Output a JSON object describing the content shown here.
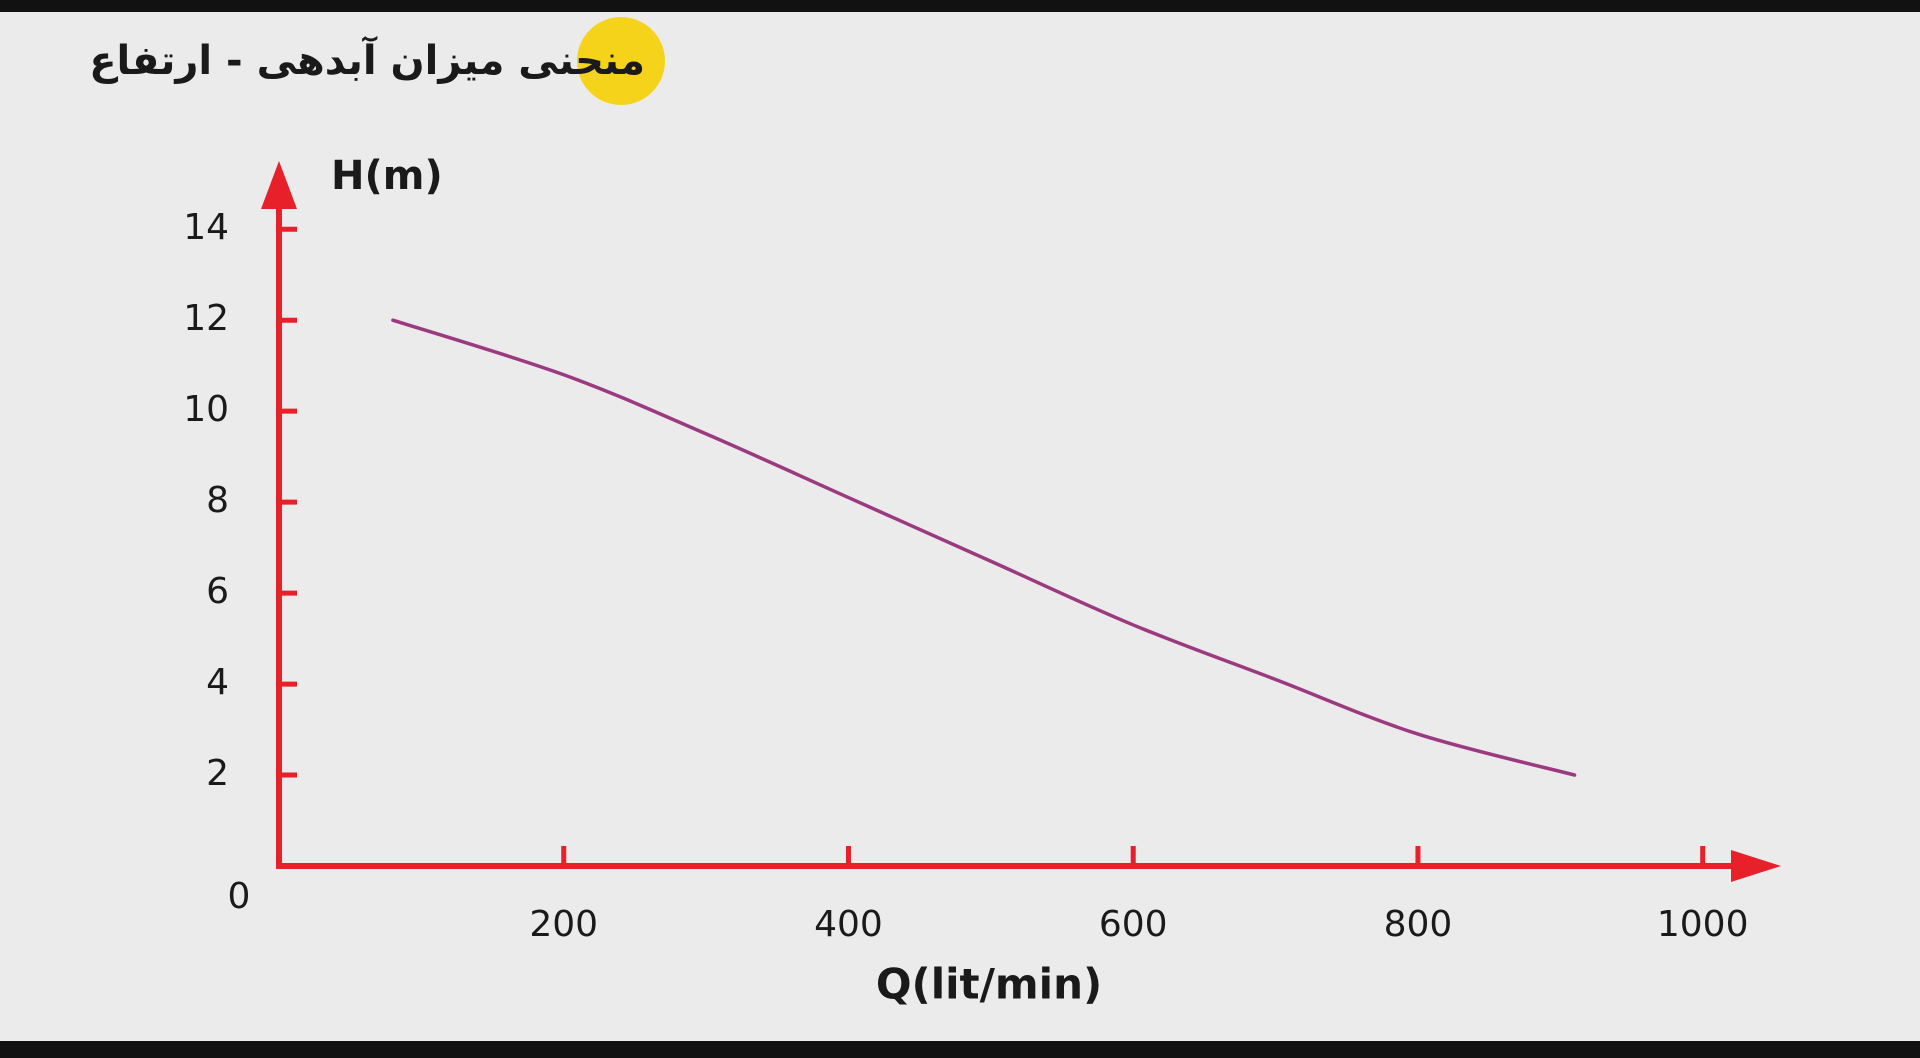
{
  "chart_data": {
    "type": "line",
    "title": "منحنی میزان آبدهی - ارتفاع",
    "x_label": "Q(lit/min)",
    "y_label": "H(m)",
    "x": [
      80,
      200,
      300,
      400,
      500,
      600,
      700,
      800,
      910
    ],
    "values": [
      12,
      10.8,
      9.5,
      8.1,
      6.7,
      5.3,
      4.1,
      2.9,
      2.0
    ],
    "color": "#9b3a80",
    "axis_color": "#e8202a",
    "xlim": [
      0,
      1055
    ],
    "ylim": [
      0,
      15.5
    ],
    "xticks": [
      200,
      400,
      600,
      800,
      1000
    ],
    "yticks": [
      0,
      2,
      4,
      6,
      8,
      10,
      12,
      14
    ]
  }
}
